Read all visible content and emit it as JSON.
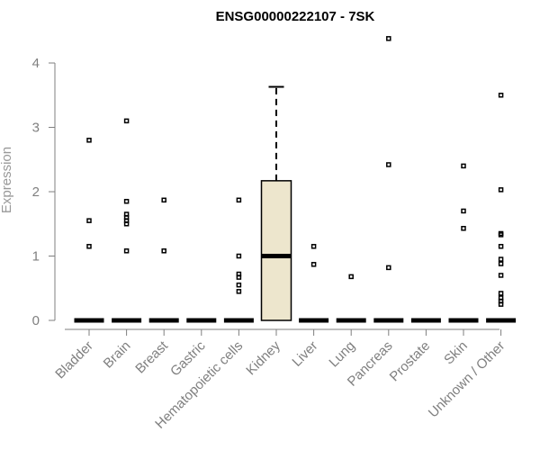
{
  "chart_data": {
    "type": "box",
    "title": "ENSG00000222107 - 7SK",
    "xlabel": "",
    "ylabel": "Expression",
    "ylim": [
      0,
      4
    ],
    "yticks": [
      0,
      1,
      2,
      3,
      4
    ],
    "grid": false,
    "legend": "none",
    "colors": {
      "box_fill": "#ede6cd",
      "stroke": "#000000",
      "axis": "#7f7f7f",
      "outlier": "#000000"
    },
    "categories": [
      "Bladder",
      "Brain",
      "Breast",
      "Gastric",
      "Hematopoietic cells",
      "Kidney",
      "Liver",
      "Lung",
      "Pancreas",
      "Prostate",
      "Skin",
      "Unknown / Other"
    ],
    "boxes": [
      {
        "category": "Bladder",
        "q1": 0,
        "median": 0,
        "q3": 0,
        "whisker_low": 0,
        "whisker_high": 0,
        "outliers": [
          2.8,
          1.55,
          1.15
        ]
      },
      {
        "category": "Brain",
        "q1": 0,
        "median": 0,
        "q3": 0,
        "whisker_low": 0,
        "whisker_high": 0,
        "outliers": [
          3.1,
          1.85,
          1.65,
          1.6,
          1.55,
          1.5,
          1.08
        ]
      },
      {
        "category": "Breast",
        "q1": 0,
        "median": 0,
        "q3": 0,
        "whisker_low": 0,
        "whisker_high": 0,
        "outliers": [
          1.87,
          1.08
        ]
      },
      {
        "category": "Gastric",
        "q1": 0,
        "median": 0,
        "q3": 0,
        "whisker_low": 0,
        "whisker_high": 0,
        "outliers": []
      },
      {
        "category": "Hematopoietic cells",
        "q1": 0,
        "median": 0,
        "q3": 0,
        "whisker_low": 0,
        "whisker_high": 0,
        "outliers": [
          1.87,
          1.0,
          0.72,
          0.67,
          0.55,
          0.45
        ]
      },
      {
        "category": "Kidney",
        "q1": 0,
        "median": 1.0,
        "q3": 2.17,
        "whisker_low": 0,
        "whisker_high": 3.63,
        "outliers": []
      },
      {
        "category": "Liver",
        "q1": 0,
        "median": 0,
        "q3": 0,
        "whisker_low": 0,
        "whisker_high": 0,
        "outliers": [
          1.15,
          0.87
        ]
      },
      {
        "category": "Lung",
        "q1": 0,
        "median": 0,
        "q3": 0,
        "whisker_low": 0,
        "whisker_high": 0,
        "outliers": [
          0.68
        ]
      },
      {
        "category": "Pancreas",
        "q1": 0,
        "median": 0,
        "q3": 0,
        "whisker_low": 0,
        "whisker_high": 0,
        "outliers": [
          4.38,
          2.42,
          0.82
        ]
      },
      {
        "category": "Prostate",
        "q1": 0,
        "median": 0,
        "q3": 0,
        "whisker_low": 0,
        "whisker_high": 0,
        "outliers": []
      },
      {
        "category": "Skin",
        "q1": 0,
        "median": 0,
        "q3": 0,
        "whisker_low": 0,
        "whisker_high": 0,
        "outliers": [
          2.4,
          1.7,
          1.43
        ]
      },
      {
        "category": "Unknown / Other",
        "q1": 0,
        "median": 0,
        "q3": 0,
        "whisker_low": 0,
        "whisker_high": 0,
        "outliers": [
          3.5,
          2.03,
          1.35,
          1.33,
          1.15,
          0.95,
          0.88,
          0.7,
          0.42,
          0.35,
          0.3,
          0.25
        ]
      }
    ]
  }
}
